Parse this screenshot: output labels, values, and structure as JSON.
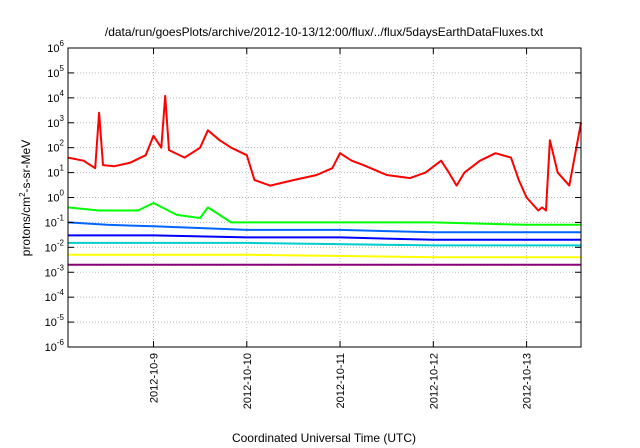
{
  "chart_data": {
    "type": "line",
    "title": "/data/run/goesPlots/archive/2012-10-13/12:00/flux/../flux/5daysEarthDataFluxes.txt",
    "xlabel": "Coordinated Universal Time (UTC)",
    "ylabel_parts": [
      "protons/cm",
      "2",
      "-s-sr-MeV"
    ],
    "x_range": [
      "2012-10-08T02:00",
      "2012-10-13T14:00"
    ],
    "y_scale": "log",
    "ylim": [
      1e-06,
      1000000.0
    ],
    "grid": true,
    "x_ticks": [
      "2012-10-9",
      "2012-10-10",
      "2012-10-11",
      "2012-10-12",
      "2012-10-13"
    ],
    "y_ticks": [
      {
        "base": "10",
        "exp": "-6"
      },
      {
        "base": "10",
        "exp": "-5"
      },
      {
        "base": "10",
        "exp": "-4"
      },
      {
        "base": "10",
        "exp": "-3"
      },
      {
        "base": "10",
        "exp": "-2"
      },
      {
        "base": "10",
        "exp": "-1"
      },
      {
        "base": "10",
        "exp": "0"
      },
      {
        "base": "10",
        "exp": "1"
      },
      {
        "base": "10",
        "exp": "2"
      },
      {
        "base": "10",
        "exp": "3"
      },
      {
        "base": "10",
        "exp": "4"
      },
      {
        "base": "10",
        "exp": "5"
      },
      {
        "base": "10",
        "exp": "6"
      }
    ],
    "series": [
      {
        "color": "#ff0000",
        "points": [
          [
            "2012-10-08T02:00",
            40
          ],
          [
            "2012-10-08T06:00",
            30
          ],
          [
            "2012-10-08T09:00",
            15
          ],
          [
            "2012-10-08T10:00",
            2500
          ],
          [
            "2012-10-08T11:00",
            20
          ],
          [
            "2012-10-08T14:00",
            18
          ],
          [
            "2012-10-08T18:00",
            25
          ],
          [
            "2012-10-08T22:00",
            50
          ],
          [
            "2012-10-09T00:00",
            300
          ],
          [
            "2012-10-09T02:00",
            100
          ],
          [
            "2012-10-09T03:00",
            12000
          ],
          [
            "2012-10-09T04:00",
            80
          ],
          [
            "2012-10-09T08:00",
            40
          ],
          [
            "2012-10-09T12:00",
            100
          ],
          [
            "2012-10-09T14:00",
            500
          ],
          [
            "2012-10-09T17:00",
            200
          ],
          [
            "2012-10-09T20:00",
            100
          ],
          [
            "2012-10-10T00:00",
            50
          ],
          [
            "2012-10-10T02:00",
            5
          ],
          [
            "2012-10-10T06:00",
            3
          ],
          [
            "2012-10-10T12:00",
            5
          ],
          [
            "2012-10-10T18:00",
            8
          ],
          [
            "2012-10-10T22:00",
            15
          ],
          [
            "2012-10-11T00:00",
            60
          ],
          [
            "2012-10-11T03:00",
            30
          ],
          [
            "2012-10-11T06:00",
            20
          ],
          [
            "2012-10-11T12:00",
            8
          ],
          [
            "2012-10-11T18:00",
            6
          ],
          [
            "2012-10-11T22:00",
            10
          ],
          [
            "2012-10-12T02:00",
            30
          ],
          [
            "2012-10-12T04:00",
            10
          ],
          [
            "2012-10-12T06:00",
            3
          ],
          [
            "2012-10-12T08:00",
            10
          ],
          [
            "2012-10-12T12:00",
            30
          ],
          [
            "2012-10-12T16:00",
            60
          ],
          [
            "2012-10-12T20:00",
            40
          ],
          [
            "2012-10-12T22:00",
            5
          ],
          [
            "2012-10-13T00:00",
            1
          ],
          [
            "2012-10-13T03:00",
            0.3
          ],
          [
            "2012-10-13T04:00",
            0.4
          ],
          [
            "2012-10-13T05:00",
            0.3
          ],
          [
            "2012-10-13T06:00",
            200
          ],
          [
            "2012-10-13T08:00",
            10
          ],
          [
            "2012-10-13T11:00",
            3
          ],
          [
            "2012-10-13T14:00",
            1000
          ]
        ]
      },
      {
        "color": "#00ff00",
        "points": [
          [
            "2012-10-08T02:00",
            0.4
          ],
          [
            "2012-10-08T10:00",
            0.3
          ],
          [
            "2012-10-08T20:00",
            0.3
          ],
          [
            "2012-10-09T00:00",
            0.6
          ],
          [
            "2012-10-09T06:00",
            0.2
          ],
          [
            "2012-10-09T12:00",
            0.15
          ],
          [
            "2012-10-09T14:00",
            0.4
          ],
          [
            "2012-10-09T20:00",
            0.1
          ],
          [
            "2012-10-10T06:00",
            0.1
          ],
          [
            "2012-10-11T00:00",
            0.1
          ],
          [
            "2012-10-12T00:00",
            0.1
          ],
          [
            "2012-10-13T00:00",
            0.08
          ],
          [
            "2012-10-13T14:00",
            0.08
          ]
        ]
      },
      {
        "color": "#0066ff",
        "points": [
          [
            "2012-10-08T02:00",
            0.1
          ],
          [
            "2012-10-08T12:00",
            0.08
          ],
          [
            "2012-10-09T00:00",
            0.07
          ],
          [
            "2012-10-10T00:00",
            0.05
          ],
          [
            "2012-10-11T00:00",
            0.05
          ],
          [
            "2012-10-12T00:00",
            0.04
          ],
          [
            "2012-10-13T00:00",
            0.04
          ],
          [
            "2012-10-13T14:00",
            0.04
          ]
        ]
      },
      {
        "color": "#0000ff",
        "points": [
          [
            "2012-10-08T02:00",
            0.03
          ],
          [
            "2012-10-09T00:00",
            0.03
          ],
          [
            "2012-10-10T00:00",
            0.025
          ],
          [
            "2012-10-11T00:00",
            0.025
          ],
          [
            "2012-10-12T00:00",
            0.02
          ],
          [
            "2012-10-13T14:00",
            0.02
          ]
        ]
      },
      {
        "color": "#00cccc",
        "points": [
          [
            "2012-10-08T02:00",
            0.015
          ],
          [
            "2012-10-10T00:00",
            0.015
          ],
          [
            "2012-10-12T00:00",
            0.012
          ],
          [
            "2012-10-13T14:00",
            0.012
          ]
        ]
      },
      {
        "color": "#ffff00",
        "points": [
          [
            "2012-10-08T02:00",
            0.005
          ],
          [
            "2012-10-10T00:00",
            0.005
          ],
          [
            "2012-10-12T00:00",
            0.004
          ],
          [
            "2012-10-13T14:00",
            0.004
          ]
        ]
      },
      {
        "color": "#880077",
        "points": [
          [
            "2012-10-08T02:00",
            0.002
          ],
          [
            "2012-10-10T00:00",
            0.002
          ],
          [
            "2012-10-12T00:00",
            0.002
          ],
          [
            "2012-10-13T14:00",
            0.002
          ]
        ]
      }
    ]
  }
}
